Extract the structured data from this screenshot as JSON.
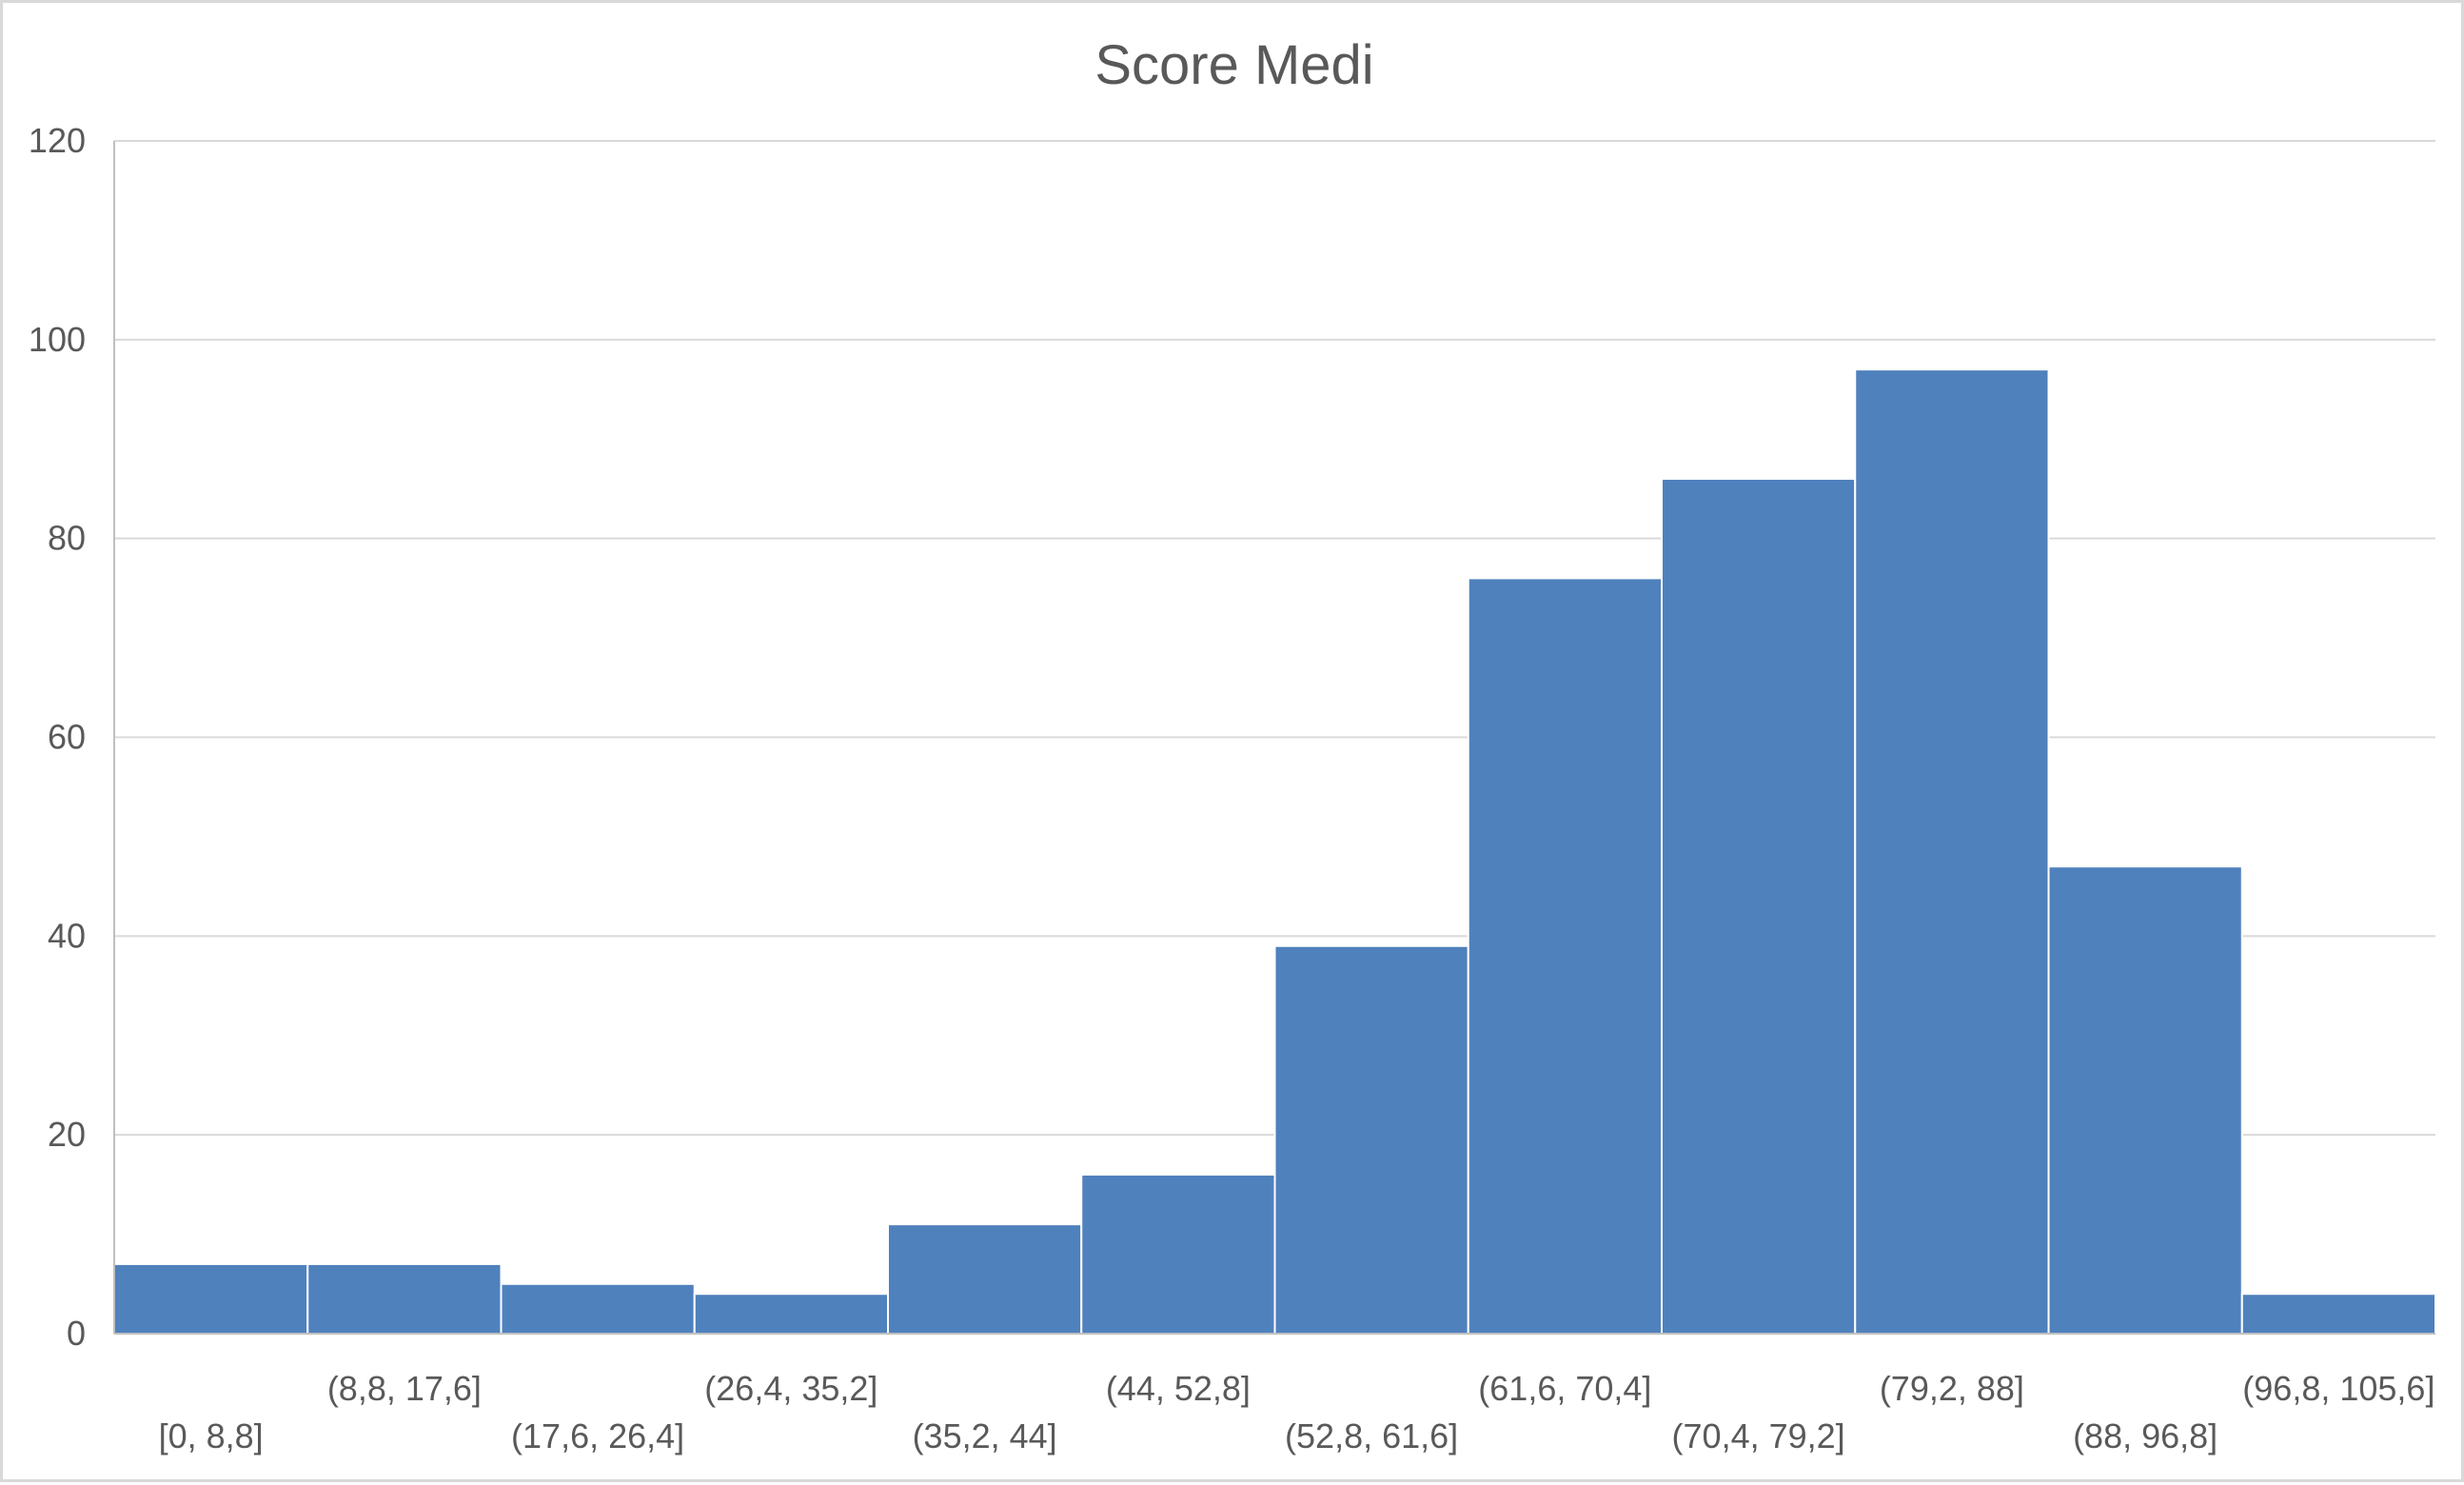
{
  "chart_data": {
    "type": "bar",
    "title": "Score Medi",
    "xlabel": "",
    "ylabel": "",
    "categories": [
      "[0, 8,8]",
      "(8,8, 17,6]",
      "(17,6, 26,4]",
      "(26,4, 35,2]",
      "(35,2, 44]",
      "(44, 52,8]",
      "(52,8, 61,6]",
      "(61,6, 70,4]",
      "(70,4, 79,2]",
      "(79,2, 88]",
      "(88, 96,8]",
      "(96,8, 105,6]"
    ],
    "values": [
      7,
      7,
      5,
      4,
      11,
      16,
      39,
      76,
      86,
      97,
      47,
      4
    ],
    "ylim": [
      0,
      120
    ],
    "yticks": [
      "0",
      "20",
      "40",
      "60",
      "80",
      "100",
      "120"
    ],
    "grid": true,
    "legend": "none",
    "bar_color": "#4f81bd"
  }
}
